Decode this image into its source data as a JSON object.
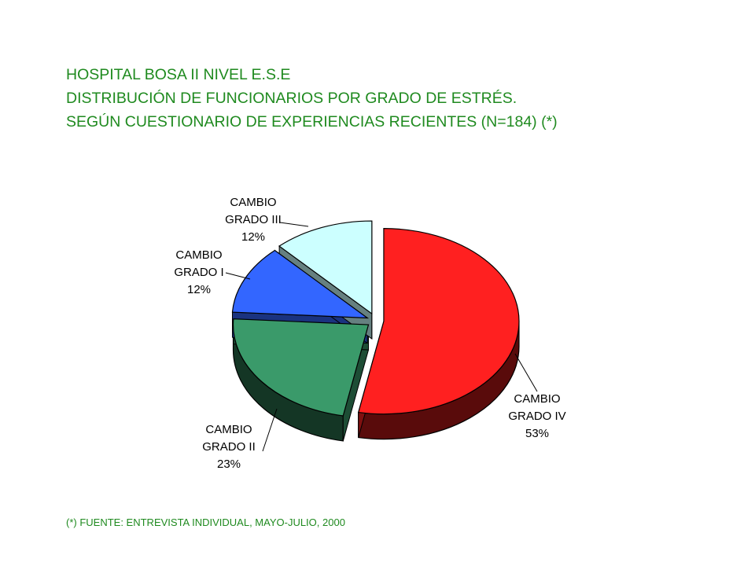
{
  "header": {
    "line1": "HOSPITAL BOSA II NIVEL E.S.E",
    "line2": "DISTRIBUCIÓN DE FUNCIONARIOS POR GRADO DE ESTRÉS.",
    "line3": "SEGÚN CUESTIONARIO DE EXPERIENCIAS RECIENTES  (N=184) (*)"
  },
  "footnote": "(*) FUENTE: ENTREVISTA INDIVIDUAL, MAYO-JULIO, 2000",
  "colors": {
    "text_green": "#1f8a1f"
  },
  "chart_data": {
    "type": "pie",
    "style": "3d-exploded",
    "slices": [
      {
        "name": "CAMBIO GRADO IV",
        "lines": [
          "CAMBIO",
          "GRADO IV",
          "53%"
        ],
        "value": 53,
        "color": "#ff2020"
      },
      {
        "name": "CAMBIO GRADO II",
        "lines": [
          "CAMBIO",
          "GRADO II",
          "23%"
        ],
        "value": 23,
        "color": "#3a9a6a"
      },
      {
        "name": "CAMBIO GRADO I",
        "lines": [
          "CAMBIO",
          "GRADO I",
          "12%"
        ],
        "value": 12,
        "color": "#3366ff"
      },
      {
        "name": "CAMBIO GRADO III",
        "lines": [
          "CAMBIO",
          "GRADO III",
          "12%"
        ],
        "value": 12,
        "color": "#ccffff"
      }
    ]
  }
}
